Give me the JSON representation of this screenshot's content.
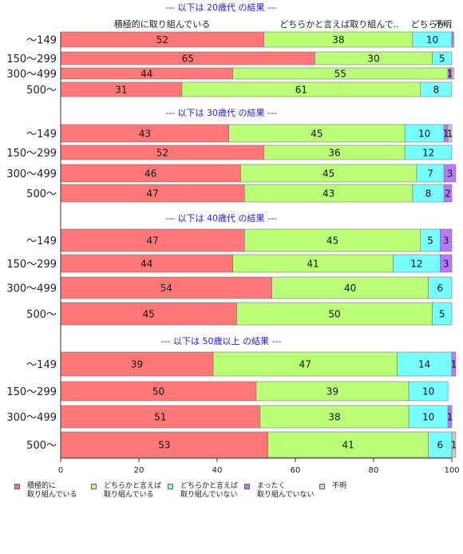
{
  "chart_data": {
    "type": "bar",
    "orientation": "horizontal",
    "stacked": true,
    "xlim": [
      0,
      100
    ],
    "xticks": [
      "0",
      "20",
      "40",
      "60",
      "80",
      "100"
    ],
    "grid": false,
    "legend_position": "bottom",
    "top_column_labels": [
      "積極的に取り組んでいる",
      "どちらかと言えば取り組んで..",
      "どちらか..",
      "不明"
    ],
    "series": [
      {
        "name": "積極的に\n取り組んでいる",
        "color": "#FF7777"
      },
      {
        "name": "どちらかと言えば\n取り組んでいる",
        "color": "#BBFF77"
      },
      {
        "name": "どちらかと言えば\n取り組んでいない",
        "color": "#77FFFF"
      },
      {
        "name": "まったく\n取り組んでいない",
        "color": "#BB77FF"
      },
      {
        "name": "不明",
        "color": "#CCCCCC"
      }
    ],
    "groups": [
      {
        "title": "--- 以下は 20歳代 の結果 ---",
        "categories": [
          "～149",
          "150～299",
          "300～499",
          "500～"
        ],
        "values": [
          [
            52,
            38,
            10,
            0.5,
            0
          ],
          [
            65,
            30,
            5,
            0,
            0
          ],
          [
            44,
            55,
            0,
            1,
            0.5
          ],
          [
            31,
            61,
            8,
            0,
            0
          ]
        ],
        "labels": [
          [
            "52",
            "38",
            "10",
            "",
            ""
          ],
          [
            "65",
            "30",
            "5",
            "",
            ""
          ],
          [
            "44",
            "55",
            "",
            "1",
            ""
          ],
          [
            "31",
            "61",
            "8",
            "",
            ""
          ]
        ]
      },
      {
        "title": "--- 以下は 30歳代 の結果 ---",
        "categories": [
          "～149",
          "150～299",
          "300～499",
          "500～"
        ],
        "values": [
          [
            43,
            45,
            10,
            1,
            1
          ],
          [
            52,
            36,
            12,
            0,
            0
          ],
          [
            46,
            45,
            7,
            3,
            0
          ],
          [
            47,
            43,
            8,
            2,
            0
          ]
        ],
        "labels": [
          [
            "43",
            "45",
            "10",
            "1",
            "1"
          ],
          [
            "52",
            "36",
            "12",
            "",
            ""
          ],
          [
            "46",
            "45",
            "7",
            "3",
            ""
          ],
          [
            "47",
            "43",
            "8",
            "2",
            ""
          ]
        ]
      },
      {
        "title": "--- 以下は 40歳代 の結果 ---",
        "categories": [
          "～149",
          "150～299",
          "300～499",
          "500～"
        ],
        "values": [
          [
            47,
            45,
            5,
            3,
            0
          ],
          [
            44,
            41,
            12,
            3,
            0
          ],
          [
            54,
            40,
            6,
            0,
            0
          ],
          [
            45,
            50,
            5,
            0,
            0
          ]
        ],
        "labels": [
          [
            "47",
            "45",
            "5",
            "3",
            ""
          ],
          [
            "44",
            "41",
            "12",
            "3",
            ""
          ],
          [
            "54",
            "40",
            "6",
            "",
            ""
          ],
          [
            "45",
            "50",
            "5",
            "",
            ""
          ]
        ]
      },
      {
        "title": "--- 以下は 50歳以上 の結果 ---",
        "categories": [
          "～149",
          "150～299",
          "300～499",
          "500～"
        ],
        "values": [
          [
            39,
            47,
            14,
            1,
            0
          ],
          [
            50,
            39,
            10,
            0,
            0
          ],
          [
            51,
            38,
            10,
            1,
            0
          ],
          [
            53,
            41,
            6,
            0,
            1
          ]
        ],
        "labels": [
          [
            "39",
            "47",
            "14",
            "1",
            ""
          ],
          [
            "50",
            "39",
            "10",
            "",
            ""
          ],
          [
            "51",
            "38",
            "10",
            "1",
            ""
          ],
          [
            "53",
            "41",
            "6",
            "",
            "1"
          ]
        ]
      }
    ]
  }
}
